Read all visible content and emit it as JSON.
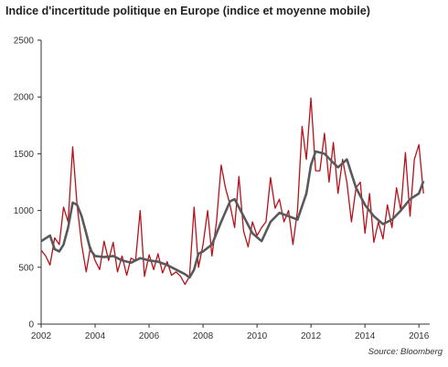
{
  "chart_data": {
    "type": "line",
    "title": "Indice d'incertitude politique en Europe (indice et moyenne mobile)",
    "source": "Source: Bloomberg",
    "xlim": [
      2002,
      2016.4
    ],
    "xticks": [
      2002,
      2004,
      2006,
      2008,
      2010,
      2012,
      2014,
      2016
    ],
    "ylim": [
      0,
      2500
    ],
    "yticks": [
      0,
      500,
      1000,
      1500,
      2000,
      2500
    ],
    "series": [
      {
        "color": "#b5121b",
        "x": [
          2002,
          2002.17,
          2002.33,
          2002.5,
          2002.67,
          2002.83,
          2003,
          2003.17,
          2003.33,
          2003.5,
          2003.67,
          2003.83,
          2004,
          2004.17,
          2004.33,
          2004.5,
          2004.67,
          2004.83,
          2005,
          2005.17,
          2005.33,
          2005.5,
          2005.67,
          2005.83,
          2006,
          2006.17,
          2006.33,
          2006.5,
          2006.67,
          2006.83,
          2007,
          2007.17,
          2007.33,
          2007.5,
          2007.67,
          2007.83,
          2008,
          2008.17,
          2008.33,
          2008.5,
          2008.67,
          2008.83,
          2009,
          2009.17,
          2009.33,
          2009.5,
          2009.67,
          2009.83,
          2010,
          2010.17,
          2010.33,
          2010.5,
          2010.67,
          2010.83,
          2011,
          2011.17,
          2011.33,
          2011.5,
          2011.67,
          2011.83,
          2012,
          2012.17,
          2012.33,
          2012.5,
          2012.67,
          2012.83,
          2013,
          2013.17,
          2013.33,
          2013.5,
          2013.67,
          2013.83,
          2014,
          2014.17,
          2014.33,
          2014.5,
          2014.67,
          2014.83,
          2015,
          2015.17,
          2015.33,
          2015.5,
          2015.67,
          2015.83,
          2016,
          2016.17
        ],
        "values": [
          650,
          600,
          520,
          760,
          700,
          1030,
          900,
          1560,
          1050,
          700,
          460,
          680,
          560,
          480,
          730,
          560,
          720,
          460,
          600,
          430,
          580,
          560,
          1000,
          420,
          610,
          480,
          620,
          450,
          550,
          430,
          460,
          420,
          350,
          420,
          1030,
          500,
          700,
          1000,
          600,
          900,
          1400,
          1200,
          1050,
          850,
          1300,
          820,
          680,
          900,
          780,
          850,
          900,
          1290,
          1020,
          1100,
          900,
          1000,
          700,
          1000,
          1740,
          1450,
          1990,
          1350,
          1350,
          1680,
          1250,
          1600,
          1150,
          1450,
          1250,
          900,
          1200,
          1250,
          800,
          1150,
          720,
          900,
          750,
          1050,
          850,
          1200,
          1000,
          1510,
          950,
          1450,
          1580,
          1150
        ]
      },
      {
        "color": "#58595b",
        "x": [
          2002,
          2002.33,
          2002.5,
          2002.67,
          2002.83,
          2003,
          2003.17,
          2003.33,
          2003.5,
          2003.67,
          2003.83,
          2004,
          2004.33,
          2004.67,
          2005,
          2005.33,
          2005.67,
          2006,
          2006.33,
          2006.67,
          2007,
          2007.33,
          2007.5,
          2007.67,
          2007.83,
          2008,
          2008.33,
          2008.67,
          2009,
          2009.17,
          2009.5,
          2009.83,
          2010.17,
          2010.5,
          2010.83,
          2011.17,
          2011.5,
          2011.83,
          2012,
          2012.17,
          2012.5,
          2012.83,
          2013,
          2013.33,
          2013.67,
          2014,
          2014.33,
          2014.67,
          2015,
          2015.33,
          2015.67,
          2016,
          2016.17
        ],
        "values": [
          730,
          780,
          660,
          640,
          700,
          850,
          1070,
          1050,
          950,
          800,
          650,
          600,
          590,
          600,
          560,
          540,
          580,
          560,
          550,
          520,
          480,
          440,
          410,
          480,
          620,
          640,
          700,
          900,
          1080,
          1100,
          950,
          800,
          730,
          900,
          980,
          950,
          920,
          1150,
          1400,
          1520,
          1500,
          1420,
          1380,
          1450,
          1200,
          1050,
          950,
          880,
          920,
          1000,
          1100,
          1150,
          1260
        ]
      }
    ]
  }
}
